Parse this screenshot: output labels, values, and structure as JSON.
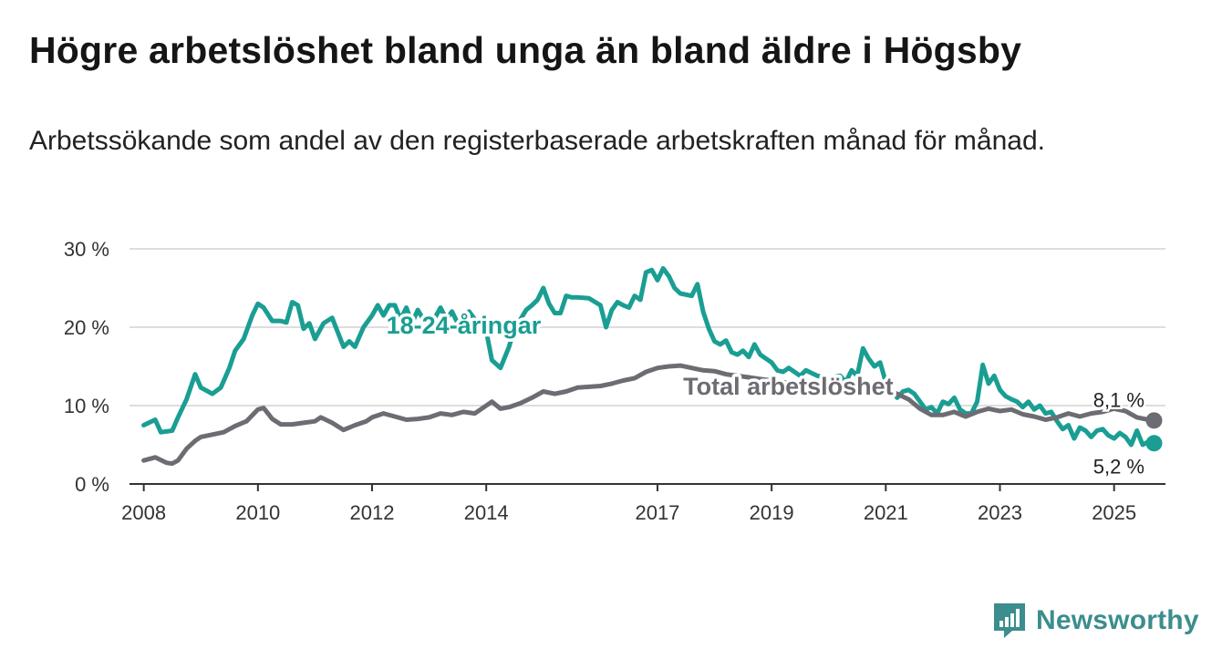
{
  "title": "Högre arbetslöshet bland unga än bland äldre i Högsby",
  "subtitle": "Arbetssökande som andel av den registerbaserade arbetskraften månad för månad.",
  "brand": {
    "name": "Newsworthy"
  },
  "colors": {
    "youth": "#1a9e93",
    "total": "#6d6c73",
    "grid": "#dddddd",
    "axis": "#333333",
    "brand": "#3c8d8d"
  },
  "chart_data": {
    "type": "line",
    "title": "Högre arbetslöshet bland unga än bland äldre i Högsby",
    "xlabel": "",
    "ylabel": "",
    "xlim": [
      2007.75,
      2025.9
    ],
    "ylim": [
      0,
      30
    ],
    "y_ticks": [
      "0 %",
      "10 %",
      "20 %",
      "30 %"
    ],
    "y_tick_values": [
      0,
      10,
      20,
      30
    ],
    "x_ticks": [
      "2008",
      "2010",
      "2012",
      "2014",
      "2017",
      "2019",
      "2021",
      "2023",
      "2025"
    ],
    "x_tick_values": [
      2008,
      2010,
      2012,
      2014,
      2017,
      2019,
      2021,
      2023,
      2025
    ],
    "grid": true,
    "series": [
      {
        "name": "18-24-åringar",
        "label": "18-24-åringar",
        "color": "#1a9e93",
        "end_label": "5,2 %",
        "points": [
          [
            2008.0,
            7.5
          ],
          [
            2008.2,
            8.2
          ],
          [
            2008.3,
            6.6
          ],
          [
            2008.5,
            6.8
          ],
          [
            2008.6,
            8.5
          ],
          [
            2008.75,
            10.8
          ],
          [
            2008.9,
            14.0
          ],
          [
            2009.0,
            12.3
          ],
          [
            2009.2,
            11.5
          ],
          [
            2009.35,
            12.3
          ],
          [
            2009.5,
            14.8
          ],
          [
            2009.6,
            17.0
          ],
          [
            2009.75,
            18.5
          ],
          [
            2009.9,
            21.5
          ],
          [
            2010.0,
            23.0
          ],
          [
            2010.1,
            22.5
          ],
          [
            2010.25,
            20.8
          ],
          [
            2010.4,
            20.8
          ],
          [
            2010.5,
            20.6
          ],
          [
            2010.6,
            23.2
          ],
          [
            2010.7,
            22.8
          ],
          [
            2010.8,
            19.8
          ],
          [
            2010.9,
            20.5
          ],
          [
            2011.0,
            18.5
          ],
          [
            2011.15,
            20.5
          ],
          [
            2011.3,
            21.2
          ],
          [
            2011.5,
            17.5
          ],
          [
            2011.6,
            18.2
          ],
          [
            2011.7,
            17.5
          ],
          [
            2011.85,
            20.0
          ],
          [
            2012.0,
            21.5
          ],
          [
            2012.1,
            22.8
          ],
          [
            2012.2,
            21.5
          ],
          [
            2012.3,
            22.8
          ],
          [
            2012.4,
            22.8
          ],
          [
            2012.5,
            21.0
          ],
          [
            2012.6,
            22.5
          ],
          [
            2012.7,
            20.5
          ],
          [
            2012.8,
            22.2
          ],
          [
            2012.9,
            21.0
          ],
          [
            2013.0,
            20.5
          ],
          [
            2013.1,
            21.2
          ],
          [
            2013.2,
            22.5
          ],
          [
            2013.3,
            21.0
          ],
          [
            2013.4,
            22.0
          ],
          [
            2013.5,
            20.5
          ],
          [
            2013.6,
            21.0
          ],
          [
            2013.7,
            22.0
          ],
          [
            2013.8,
            21.0
          ],
          [
            2013.9,
            20.2
          ],
          [
            2014.0,
            19.5
          ],
          [
            2014.1,
            15.8
          ],
          [
            2014.25,
            14.8
          ],
          [
            2014.4,
            17.5
          ],
          [
            2014.5,
            20.0
          ],
          [
            2014.6,
            21.0
          ],
          [
            2014.7,
            22.2
          ],
          [
            2014.8,
            22.8
          ],
          [
            2014.9,
            23.5
          ],
          [
            2015.0,
            25.0
          ],
          [
            2015.1,
            23.0
          ],
          [
            2015.2,
            21.8
          ],
          [
            2015.3,
            21.8
          ],
          [
            2015.4,
            24.0
          ],
          [
            2015.5,
            23.8
          ],
          [
            2015.6,
            23.8
          ],
          [
            2015.8,
            23.7
          ],
          [
            2016.0,
            22.8
          ],
          [
            2016.1,
            20.0
          ],
          [
            2016.2,
            22.2
          ],
          [
            2016.3,
            23.2
          ],
          [
            2016.4,
            22.8
          ],
          [
            2016.5,
            22.5
          ],
          [
            2016.6,
            24.0
          ],
          [
            2016.7,
            23.5
          ],
          [
            2016.8,
            27.0
          ],
          [
            2016.9,
            27.3
          ],
          [
            2017.0,
            26.0
          ],
          [
            2017.1,
            27.5
          ],
          [
            2017.2,
            26.5
          ],
          [
            2017.3,
            25.0
          ],
          [
            2017.4,
            24.3
          ],
          [
            2017.6,
            24.0
          ],
          [
            2017.7,
            25.5
          ],
          [
            2017.8,
            22.0
          ],
          [
            2017.9,
            19.8
          ],
          [
            2018.0,
            18.2
          ],
          [
            2018.1,
            17.8
          ],
          [
            2018.2,
            18.3
          ],
          [
            2018.3,
            16.8
          ],
          [
            2018.4,
            16.5
          ],
          [
            2018.5,
            17.0
          ],
          [
            2018.6,
            16.2
          ],
          [
            2018.7,
            17.8
          ],
          [
            2018.8,
            16.5
          ],
          [
            2018.9,
            16.0
          ],
          [
            2019.0,
            15.5
          ],
          [
            2019.1,
            14.5
          ],
          [
            2019.2,
            14.3
          ],
          [
            2019.3,
            14.8
          ],
          [
            2019.5,
            13.8
          ],
          [
            2019.6,
            14.5
          ],
          [
            2019.8,
            13.8
          ],
          [
            2020.0,
            13.5
          ],
          [
            2020.2,
            13.8
          ],
          [
            2020.3,
            13.0
          ],
          [
            2020.4,
            14.5
          ],
          [
            2020.5,
            13.8
          ],
          [
            2020.6,
            17.3
          ],
          [
            2020.7,
            16.0
          ],
          [
            2020.8,
            15.0
          ],
          [
            2020.9,
            15.5
          ],
          [
            2021.0,
            13.0
          ],
          [
            2021.2,
            11.0
          ],
          [
            2021.3,
            11.8
          ],
          [
            2021.4,
            12.0
          ],
          [
            2021.5,
            11.5
          ],
          [
            2021.6,
            10.5
          ],
          [
            2021.7,
            9.5
          ],
          [
            2021.8,
            9.8
          ],
          [
            2021.9,
            9.0
          ],
          [
            2022.0,
            10.5
          ],
          [
            2022.1,
            10.2
          ],
          [
            2022.2,
            11.0
          ],
          [
            2022.3,
            9.5
          ],
          [
            2022.4,
            9.0
          ],
          [
            2022.5,
            9.0
          ],
          [
            2022.6,
            10.5
          ],
          [
            2022.7,
            15.2
          ],
          [
            2022.8,
            12.8
          ],
          [
            2022.9,
            13.8
          ],
          [
            2023.0,
            12.0
          ],
          [
            2023.1,
            11.2
          ],
          [
            2023.2,
            10.8
          ],
          [
            2023.3,
            10.5
          ],
          [
            2023.4,
            9.8
          ],
          [
            2023.5,
            10.5
          ],
          [
            2023.6,
            9.5
          ],
          [
            2023.7,
            10.0
          ],
          [
            2023.8,
            9.0
          ],
          [
            2023.9,
            9.2
          ],
          [
            2024.0,
            8.0
          ],
          [
            2024.1,
            7.0
          ],
          [
            2024.2,
            7.5
          ],
          [
            2024.3,
            5.8
          ],
          [
            2024.4,
            7.2
          ],
          [
            2024.5,
            6.8
          ],
          [
            2024.6,
            6.0
          ],
          [
            2024.7,
            6.8
          ],
          [
            2024.8,
            7.0
          ],
          [
            2024.9,
            6.2
          ],
          [
            2025.0,
            5.8
          ],
          [
            2025.1,
            6.5
          ],
          [
            2025.2,
            6.0
          ],
          [
            2025.3,
            5.0
          ],
          [
            2025.4,
            6.8
          ],
          [
            2025.5,
            5.0
          ],
          [
            2025.6,
            5.4
          ],
          [
            2025.7,
            5.2
          ]
        ]
      },
      {
        "name": "Total arbetslöshet",
        "label": "Total arbetslöshet",
        "color": "#6d6c73",
        "end_label": "8,1 %",
        "points": [
          [
            2008.0,
            3.0
          ],
          [
            2008.2,
            3.4
          ],
          [
            2008.4,
            2.7
          ],
          [
            2008.5,
            2.6
          ],
          [
            2008.6,
            3.0
          ],
          [
            2008.75,
            4.5
          ],
          [
            2008.9,
            5.5
          ],
          [
            2009.0,
            6.0
          ],
          [
            2009.2,
            6.3
          ],
          [
            2009.4,
            6.6
          ],
          [
            2009.6,
            7.4
          ],
          [
            2009.8,
            8.0
          ],
          [
            2010.0,
            9.5
          ],
          [
            2010.1,
            9.7
          ],
          [
            2010.25,
            8.3
          ],
          [
            2010.4,
            7.6
          ],
          [
            2010.6,
            7.6
          ],
          [
            2010.8,
            7.8
          ],
          [
            2011.0,
            8.0
          ],
          [
            2011.1,
            8.5
          ],
          [
            2011.3,
            7.8
          ],
          [
            2011.5,
            6.9
          ],
          [
            2011.7,
            7.5
          ],
          [
            2011.9,
            8.0
          ],
          [
            2012.0,
            8.5
          ],
          [
            2012.2,
            9.0
          ],
          [
            2012.4,
            8.6
          ],
          [
            2012.6,
            8.2
          ],
          [
            2012.8,
            8.3
          ],
          [
            2013.0,
            8.5
          ],
          [
            2013.2,
            9.0
          ],
          [
            2013.4,
            8.8
          ],
          [
            2013.6,
            9.2
          ],
          [
            2013.8,
            9.0
          ],
          [
            2014.0,
            10.0
          ],
          [
            2014.1,
            10.5
          ],
          [
            2014.25,
            9.6
          ],
          [
            2014.4,
            9.8
          ],
          [
            2014.6,
            10.3
          ],
          [
            2014.8,
            11.0
          ],
          [
            2015.0,
            11.8
          ],
          [
            2015.2,
            11.5
          ],
          [
            2015.4,
            11.8
          ],
          [
            2015.6,
            12.3
          ],
          [
            2015.8,
            12.4
          ],
          [
            2016.0,
            12.5
          ],
          [
            2016.2,
            12.8
          ],
          [
            2016.4,
            13.2
          ],
          [
            2016.6,
            13.5
          ],
          [
            2016.8,
            14.3
          ],
          [
            2017.0,
            14.8
          ],
          [
            2017.2,
            15.0
          ],
          [
            2017.4,
            15.1
          ],
          [
            2017.6,
            14.8
          ],
          [
            2017.8,
            14.5
          ],
          [
            2018.0,
            14.4
          ],
          [
            2018.2,
            14.0
          ],
          [
            2018.4,
            13.8
          ],
          [
            2018.6,
            13.6
          ],
          [
            2018.8,
            13.4
          ],
          [
            2019.0,
            13.2
          ],
          [
            2019.2,
            13.0
          ],
          [
            2019.4,
            12.8
          ],
          [
            2019.6,
            12.8
          ],
          [
            2019.8,
            12.6
          ],
          [
            2020.0,
            12.5
          ],
          [
            2020.2,
            12.3
          ],
          [
            2020.4,
            12.5
          ],
          [
            2020.6,
            12.6
          ],
          [
            2020.8,
            12.3
          ],
          [
            2021.0,
            12.0
          ],
          [
            2021.2,
            11.5
          ],
          [
            2021.4,
            10.8
          ],
          [
            2021.6,
            9.6
          ],
          [
            2021.8,
            8.8
          ],
          [
            2022.0,
            8.8
          ],
          [
            2022.2,
            9.2
          ],
          [
            2022.4,
            8.6
          ],
          [
            2022.6,
            9.2
          ],
          [
            2022.8,
            9.6
          ],
          [
            2023.0,
            9.3
          ],
          [
            2023.2,
            9.5
          ],
          [
            2023.4,
            8.9
          ],
          [
            2023.6,
            8.6
          ],
          [
            2023.8,
            8.2
          ],
          [
            2024.0,
            8.5
          ],
          [
            2024.2,
            9.0
          ],
          [
            2024.4,
            8.6
          ],
          [
            2024.6,
            9.0
          ],
          [
            2024.8,
            9.2
          ],
          [
            2025.0,
            9.6
          ],
          [
            2025.2,
            9.3
          ],
          [
            2025.4,
            8.5
          ],
          [
            2025.6,
            8.2
          ],
          [
            2025.7,
            8.1
          ]
        ]
      }
    ]
  }
}
